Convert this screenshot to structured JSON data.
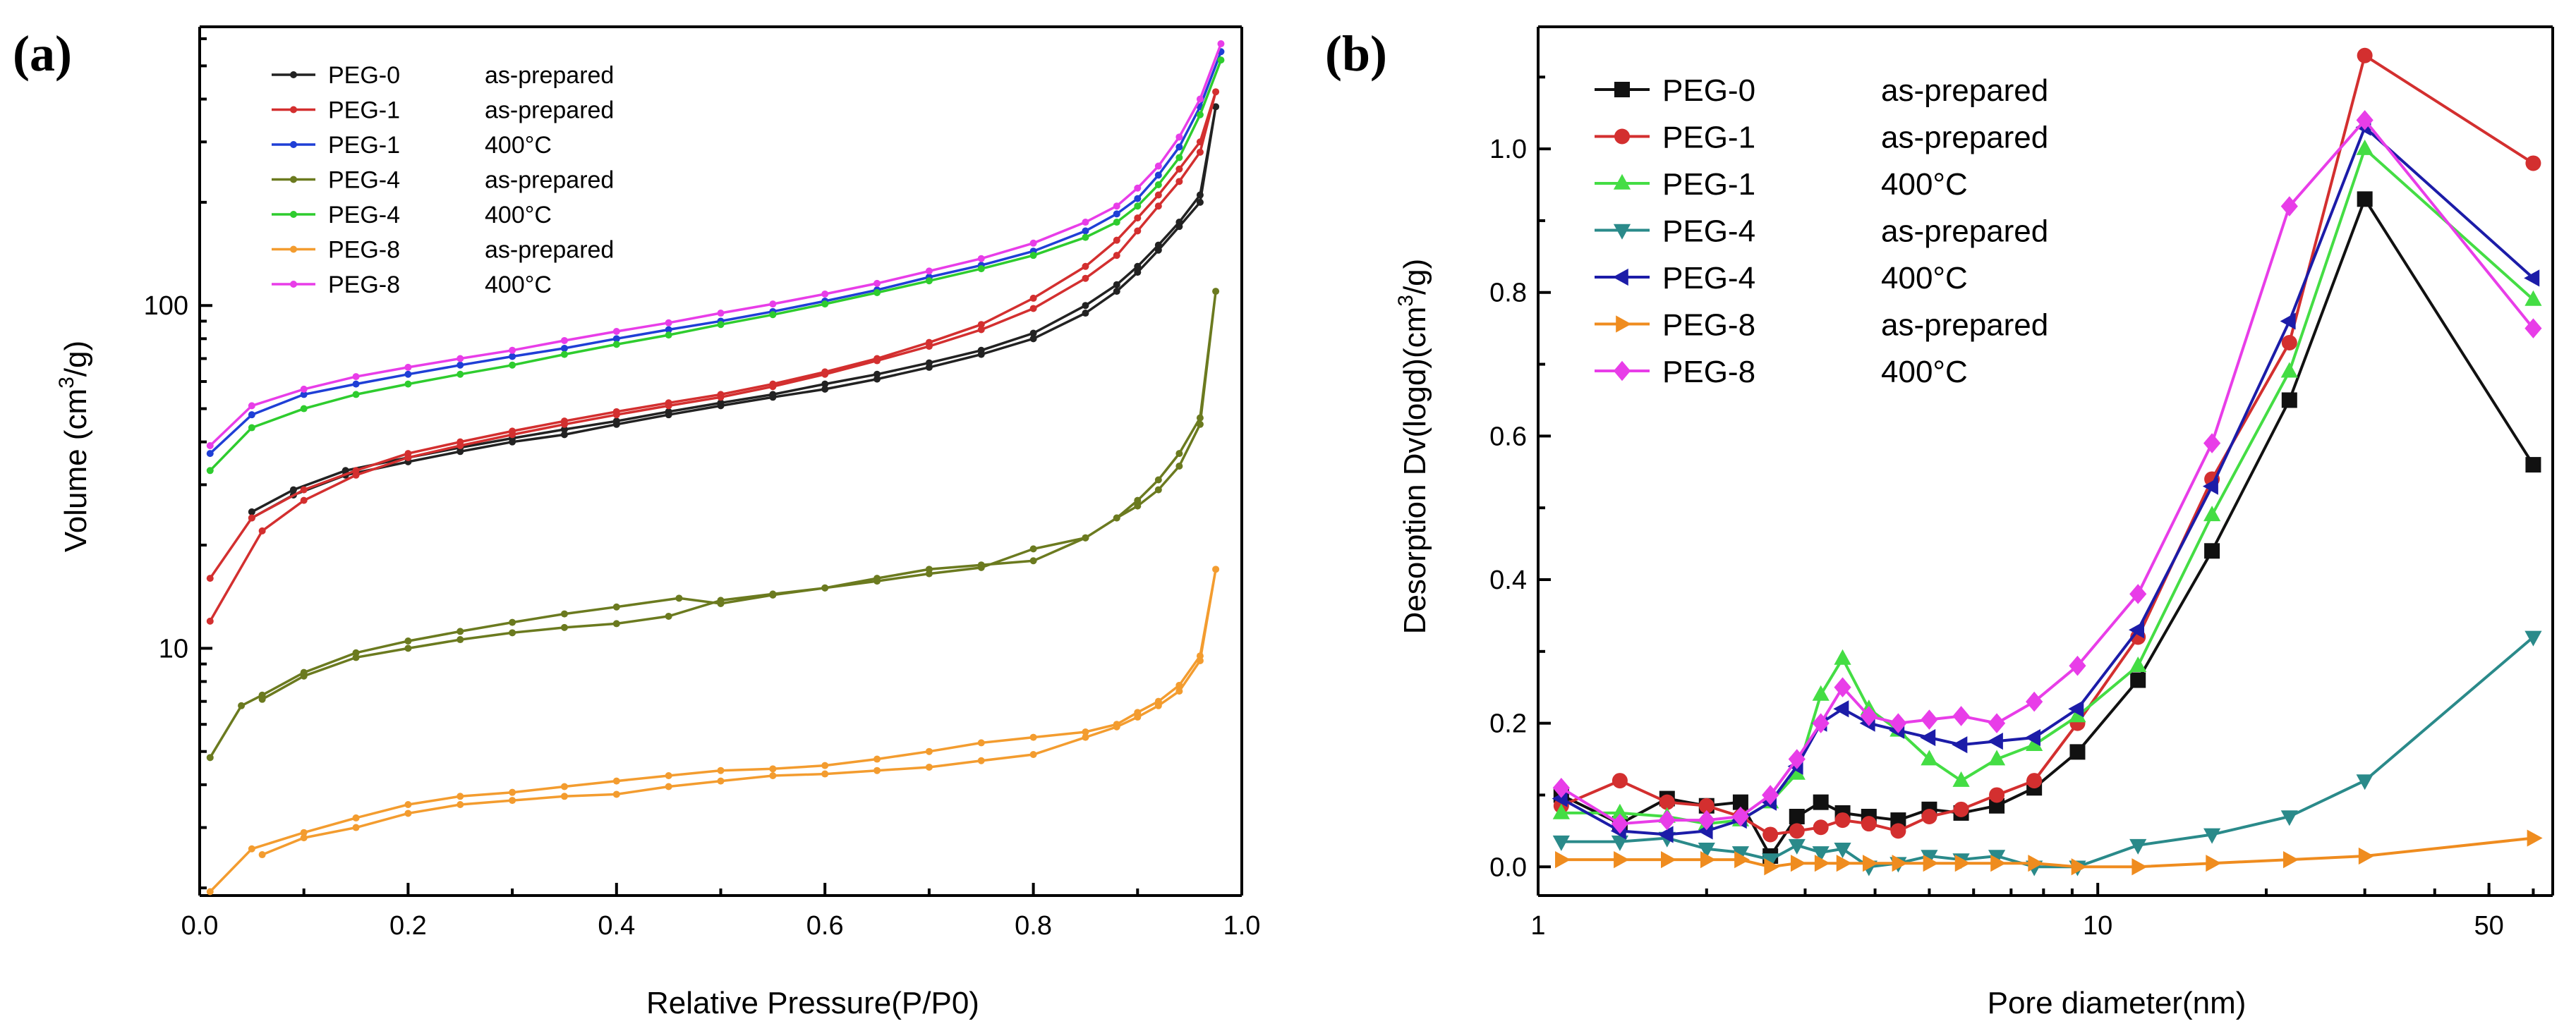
{
  "chart_data": [
    {
      "id": "a",
      "panel_label": "(a)",
      "type": "line",
      "xlabel": "Relative Pressure(P/P0)",
      "ylabel_main": "Volume (cm",
      "ylabel_sup": "3",
      "ylabel_tail": "/g)",
      "xscale": "linear",
      "yscale": "log",
      "xlim": [
        0.0,
        1.0
      ],
      "ylim": [
        1.9,
        650
      ],
      "xticks": [
        0.0,
        0.2,
        0.4,
        0.6,
        0.8,
        1.0
      ],
      "xtick_labels": [
        "0.0",
        "0.2",
        "0.4",
        "0.6",
        "0.8",
        "1.0"
      ],
      "yticks": [
        10,
        100
      ],
      "ytick_labels": [
        "10",
        "100"
      ],
      "legend_position": "top-left",
      "series": [
        {
          "name": "PEG-0",
          "condition": "as-prepared",
          "color": "#222222",
          "x": [
            0.05,
            0.09,
            0.14,
            0.2,
            0.25,
            0.3,
            0.35,
            0.4,
            0.45,
            0.5,
            0.55,
            0.6,
            0.65,
            0.7,
            0.75,
            0.8,
            0.85,
            0.88,
            0.9,
            0.92,
            0.94,
            0.96,
            0.975,
            0.96,
            0.94,
            0.92,
            0.9,
            0.88,
            0.85,
            0.8,
            0.75,
            0.7,
            0.65,
            0.6,
            0.55,
            0.5,
            0.45,
            0.4,
            0.35,
            0.3,
            0.25,
            0.2,
            0.14,
            0.09,
            0.05
          ],
          "y": [
            25,
            29,
            33,
            36,
            38.5,
            41,
            43.5,
            46,
            49,
            52,
            55,
            59,
            63,
            68,
            74,
            83,
            100,
            115,
            130,
            150,
            175,
            210,
            380,
            200,
            170,
            145,
            125,
            110,
            95,
            80,
            72,
            66,
            61,
            57,
            54,
            51,
            48,
            45,
            42,
            40,
            37.5,
            35,
            32,
            28,
            24
          ]
        },
        {
          "name": "PEG-1",
          "condition": "as-prepared",
          "color": "#d32f2f",
          "x": [
            0.01,
            0.05,
            0.1,
            0.15,
            0.2,
            0.25,
            0.3,
            0.35,
            0.4,
            0.45,
            0.5,
            0.55,
            0.6,
            0.65,
            0.7,
            0.75,
            0.8,
            0.85,
            0.88,
            0.9,
            0.92,
            0.94,
            0.96,
            0.975,
            0.96,
            0.94,
            0.92,
            0.9,
            0.88,
            0.85,
            0.8,
            0.75,
            0.7,
            0.65,
            0.6,
            0.55,
            0.5,
            0.45,
            0.4,
            0.35,
            0.3,
            0.25,
            0.2,
            0.15,
            0.1,
            0.06,
            0.01
          ],
          "y": [
            16,
            24,
            29,
            33,
            37,
            40,
            43,
            46,
            49,
            52,
            55,
            59,
            64,
            70,
            78,
            88,
            105,
            130,
            155,
            180,
            210,
            250,
            300,
            420,
            280,
            230,
            195,
            165,
            140,
            120,
            98,
            85,
            76,
            69,
            63,
            58,
            54,
            51,
            48,
            45,
            42,
            39,
            36,
            32,
            27,
            22,
            12
          ]
        },
        {
          "name": "PEG-1",
          "condition": "400°C",
          "color": "#1f3fd6",
          "x": [
            0.01,
            0.05,
            0.1,
            0.15,
            0.2,
            0.25,
            0.3,
            0.35,
            0.4,
            0.45,
            0.5,
            0.55,
            0.6,
            0.65,
            0.7,
            0.75,
            0.8,
            0.85,
            0.88,
            0.9,
            0.92,
            0.94,
            0.96,
            0.98
          ],
          "y": [
            37,
            48,
            55,
            59,
            63,
            67,
            71,
            75,
            80,
            85,
            90,
            96,
            103,
            111,
            121,
            131,
            144,
            165,
            185,
            205,
            240,
            290,
            380,
            550
          ]
        },
        {
          "name": "PEG-4",
          "condition": "as-prepared",
          "color": "#6b7a1f",
          "x": [
            0.01,
            0.04,
            0.06,
            0.1,
            0.15,
            0.2,
            0.25,
            0.3,
            0.35,
            0.4,
            0.46,
            0.5,
            0.55,
            0.6,
            0.65,
            0.7,
            0.75,
            0.8,
            0.85,
            0.88,
            0.9,
            0.92,
            0.94,
            0.96,
            0.975,
            0.96,
            0.94,
            0.92,
            0.9,
            0.88,
            0.85,
            0.8,
            0.75,
            0.7,
            0.65,
            0.6,
            0.55,
            0.5,
            0.45,
            0.4,
            0.35,
            0.3,
            0.25,
            0.2,
            0.15,
            0.1,
            0.06
          ],
          "y": [
            4.8,
            6.8,
            7.3,
            8.5,
            9.7,
            10.5,
            11.2,
            11.9,
            12.6,
            13.2,
            14.0,
            13.5,
            14.3,
            15.0,
            16.0,
            17.0,
            17.5,
            18.0,
            21,
            24,
            27,
            31,
            37,
            47,
            110,
            45,
            34,
            29,
            26,
            24,
            21,
            19.5,
            17.2,
            16.5,
            15.7,
            15.0,
            14.4,
            13.8,
            12.4,
            11.8,
            11.5,
            11.1,
            10.6,
            10.0,
            9.4,
            8.3,
            7.1
          ]
        },
        {
          "name": "PEG-4",
          "condition": "400°C",
          "color": "#2ecc2e",
          "x": [
            0.01,
            0.05,
            0.1,
            0.15,
            0.2,
            0.25,
            0.3,
            0.35,
            0.4,
            0.45,
            0.5,
            0.55,
            0.6,
            0.65,
            0.7,
            0.75,
            0.8,
            0.85,
            0.88,
            0.9,
            0.92,
            0.94,
            0.96,
            0.98
          ],
          "y": [
            33,
            44,
            50,
            55,
            59,
            63,
            67,
            72,
            77,
            82,
            88,
            94,
            101,
            109,
            118,
            128,
            140,
            158,
            175,
            195,
            225,
            270,
            360,
            520
          ]
        },
        {
          "name": "PEG-8",
          "condition": "as-prepared",
          "color": "#f39c2f",
          "x": [
            0.01,
            0.05,
            0.1,
            0.15,
            0.2,
            0.25,
            0.3,
            0.35,
            0.4,
            0.45,
            0.5,
            0.55,
            0.6,
            0.65,
            0.7,
            0.75,
            0.8,
            0.85,
            0.88,
            0.9,
            0.92,
            0.94,
            0.96,
            0.975,
            0.96,
            0.94,
            0.92,
            0.9,
            0.88,
            0.85,
            0.8,
            0.75,
            0.7,
            0.65,
            0.6,
            0.55,
            0.5,
            0.45,
            0.4,
            0.35,
            0.3,
            0.25,
            0.2,
            0.15,
            0.1,
            0.06
          ],
          "y": [
            1.95,
            2.6,
            2.9,
            3.2,
            3.5,
            3.7,
            3.8,
            3.95,
            4.1,
            4.25,
            4.4,
            4.45,
            4.55,
            4.75,
            5.0,
            5.3,
            5.5,
            5.7,
            6.0,
            6.5,
            7.0,
            7.8,
            9.5,
            17,
            9.2,
            7.5,
            6.8,
            6.3,
            5.9,
            5.5,
            4.9,
            4.7,
            4.5,
            4.4,
            4.3,
            4.25,
            4.1,
            3.95,
            3.75,
            3.7,
            3.6,
            3.5,
            3.3,
            3.0,
            2.8,
            2.5
          ]
        },
        {
          "name": "PEG-8",
          "condition": "400°C",
          "color": "#e83de8",
          "x": [
            0.01,
            0.05,
            0.1,
            0.15,
            0.2,
            0.25,
            0.3,
            0.35,
            0.4,
            0.45,
            0.5,
            0.55,
            0.6,
            0.65,
            0.7,
            0.75,
            0.8,
            0.85,
            0.88,
            0.9,
            0.92,
            0.94,
            0.96,
            0.98
          ],
          "y": [
            39,
            51,
            57,
            62,
            66,
            70,
            74,
            79,
            84,
            89,
            95,
            101,
            108,
            116,
            126,
            137,
            152,
            175,
            195,
            220,
            255,
            310,
            400,
            580
          ]
        }
      ]
    },
    {
      "id": "b",
      "panel_label": "(b)",
      "type": "line",
      "xlabel": "Pore diameter(nm)",
      "ylabel_main": "Desorption Dv(logd)(cm",
      "ylabel_sup": "3",
      "ylabel_tail": "/g)",
      "xscale": "log",
      "yscale": "linear",
      "xlim": [
        1.0,
        65
      ],
      "ylim": [
        -0.04,
        1.17
      ],
      "xticks": [
        1,
        10,
        50
      ],
      "xtick_labels": [
        "1",
        "10",
        "50"
      ],
      "yticks": [
        0.0,
        0.2,
        0.4,
        0.6,
        0.8,
        1.0
      ],
      "ytick_labels": [
        "0.0",
        "0.2",
        "0.4",
        "0.6",
        "0.8",
        "1.0"
      ],
      "legend_position": "top-left",
      "series": [
        {
          "name": "PEG-0",
          "condition": "as-prepared",
          "color": "#111111",
          "marker": "square",
          "x": [
            1.1,
            1.4,
            1.7,
            2.0,
            2.3,
            2.6,
            2.9,
            3.2,
            3.5,
            3.9,
            4.4,
            5.0,
            5.7,
            6.6,
            7.7,
            9.2,
            11.8,
            16.0,
            22.0,
            30.0,
            60.0
          ],
          "y": [
            0.1,
            0.06,
            0.095,
            0.085,
            0.09,
            0.015,
            0.07,
            0.09,
            0.075,
            0.07,
            0.065,
            0.08,
            0.075,
            0.085,
            0.11,
            0.16,
            0.26,
            0.44,
            0.65,
            0.93,
            0.56
          ]
        },
        {
          "name": "PEG-1",
          "condition": "as-prepared",
          "color": "#d32f2f",
          "marker": "circle",
          "x": [
            1.1,
            1.4,
            1.7,
            2.0,
            2.3,
            2.6,
            2.9,
            3.2,
            3.5,
            3.9,
            4.4,
            5.0,
            5.7,
            6.6,
            7.7,
            9.2,
            11.8,
            16.0,
            22.0,
            30.0,
            60.0
          ],
          "y": [
            0.085,
            0.12,
            0.09,
            0.085,
            0.07,
            0.045,
            0.05,
            0.055,
            0.065,
            0.06,
            0.05,
            0.07,
            0.08,
            0.1,
            0.12,
            0.2,
            0.32,
            0.54,
            0.73,
            1.13,
            0.98
          ]
        },
        {
          "name": "PEG-1",
          "condition": "400°C",
          "color": "#44dd44",
          "marker": "triangle-up",
          "x": [
            1.1,
            1.4,
            1.7,
            2.0,
            2.3,
            2.6,
            2.9,
            3.2,
            3.5,
            3.9,
            4.4,
            5.0,
            5.7,
            6.6,
            7.7,
            9.2,
            11.8,
            16.0,
            22.0,
            30.0,
            60.0
          ],
          "y": [
            0.075,
            0.075,
            0.07,
            0.06,
            0.065,
            0.09,
            0.13,
            0.24,
            0.29,
            0.22,
            0.19,
            0.15,
            0.12,
            0.15,
            0.17,
            0.21,
            0.28,
            0.49,
            0.69,
            1.0,
            0.79
          ]
        },
        {
          "name": "PEG-4",
          "condition": "as-prepared",
          "color": "#2a8a8a",
          "marker": "triangle-down",
          "x": [
            1.1,
            1.4,
            1.7,
            2.0,
            2.3,
            2.6,
            2.9,
            3.2,
            3.5,
            3.9,
            4.4,
            5.0,
            5.7,
            6.6,
            7.7,
            9.2,
            11.8,
            16.0,
            22.0,
            30.0,
            60.0
          ],
          "y": [
            0.035,
            0.035,
            0.04,
            0.025,
            0.02,
            0.01,
            0.03,
            0.02,
            0.025,
            0.0,
            0.005,
            0.015,
            0.01,
            0.015,
            0.0,
            0.0,
            0.03,
            0.045,
            0.07,
            0.12,
            0.32
          ]
        },
        {
          "name": "PEG-4",
          "condition": "400°C",
          "color": "#1c1ca8",
          "marker": "triangle-left",
          "x": [
            1.1,
            1.4,
            1.7,
            2.0,
            2.3,
            2.6,
            2.9,
            3.2,
            3.5,
            3.9,
            4.4,
            5.0,
            5.7,
            6.6,
            7.7,
            9.2,
            11.8,
            16.0,
            22.0,
            30.0,
            60.0
          ],
          "y": [
            0.095,
            0.05,
            0.045,
            0.05,
            0.065,
            0.09,
            0.14,
            0.2,
            0.22,
            0.2,
            0.19,
            0.18,
            0.17,
            0.175,
            0.18,
            0.22,
            0.33,
            0.53,
            0.76,
            1.03,
            0.82
          ]
        },
        {
          "name": "PEG-8",
          "condition": "as-prepared",
          "color": "#ef8c1f",
          "marker": "triangle-right",
          "x": [
            1.1,
            1.4,
            1.7,
            2.0,
            2.3,
            2.6,
            2.9,
            3.2,
            3.5,
            3.9,
            4.4,
            5.0,
            5.7,
            6.6,
            7.7,
            9.2,
            11.8,
            16.0,
            22.0,
            30.0,
            60.0
          ],
          "y": [
            0.01,
            0.01,
            0.01,
            0.01,
            0.01,
            0.0,
            0.005,
            0.005,
            0.005,
            0.005,
            0.005,
            0.005,
            0.005,
            0.005,
            0.005,
            0.0,
            0.0,
            0.005,
            0.01,
            0.015,
            0.04
          ]
        },
        {
          "name": "PEG-8",
          "condition": "400°C",
          "color": "#e83de8",
          "marker": "diamond",
          "x": [
            1.1,
            1.4,
            1.7,
            2.0,
            2.3,
            2.6,
            2.9,
            3.2,
            3.5,
            3.9,
            4.4,
            5.0,
            5.7,
            6.6,
            7.7,
            9.2,
            11.8,
            16.0,
            22.0,
            30.0,
            60.0
          ],
          "y": [
            0.11,
            0.06,
            0.065,
            0.065,
            0.07,
            0.1,
            0.15,
            0.2,
            0.25,
            0.21,
            0.2,
            0.205,
            0.21,
            0.2,
            0.23,
            0.28,
            0.38,
            0.59,
            0.92,
            1.04,
            0.75
          ]
        }
      ]
    }
  ]
}
